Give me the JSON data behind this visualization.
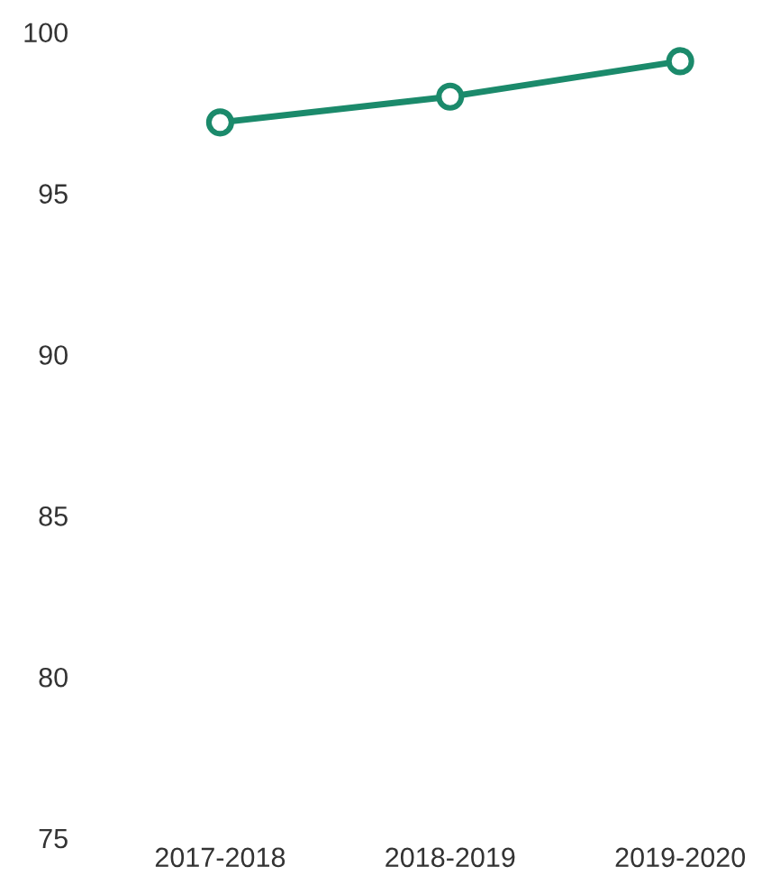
{
  "chart_data": {
    "type": "line",
    "categories": [
      "2017-2018",
      "2018-2019",
      "2019-2020"
    ],
    "series": [
      {
        "color": "#1b8a6b",
        "values": [
          97.2,
          98.0,
          99.1
        ]
      }
    ],
    "ylim": [
      75,
      100
    ],
    "yticks": [
      75,
      80,
      85,
      90,
      95,
      100
    ],
    "grid": false,
    "marker": "circle",
    "line_style": "solid",
    "legend": false
  }
}
